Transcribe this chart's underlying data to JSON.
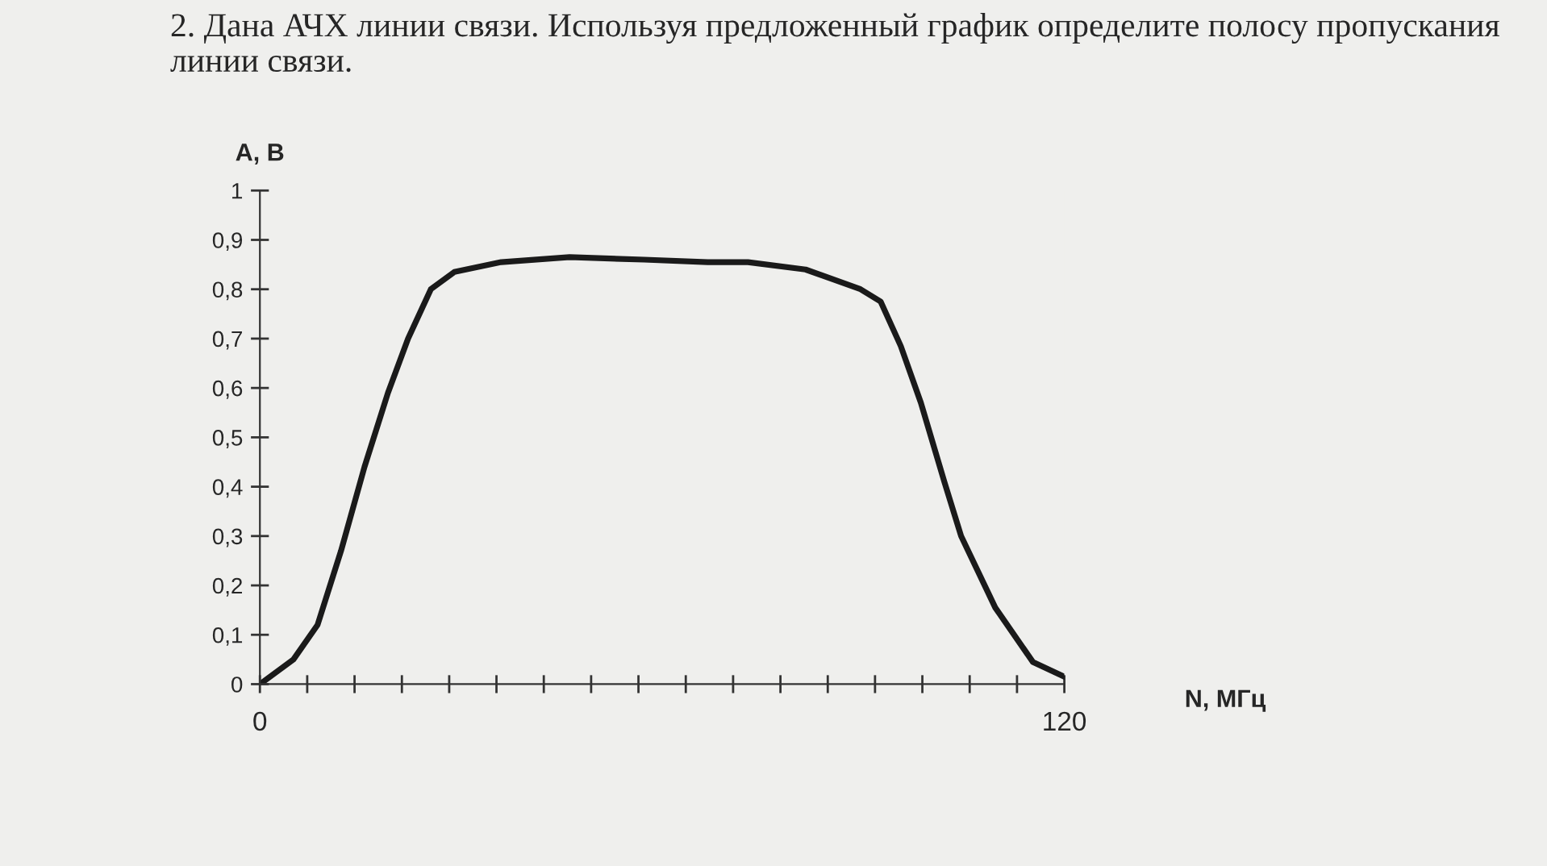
{
  "chart_data": {
    "type": "line",
    "title": "2. Дана АЧХ линии связи. Используя предложенный график определите полосу пропускания линии связи.",
    "xlabel": "N, МГц",
    "ylabel": "А, В",
    "color": "#1a1a1a",
    "line_style": "solid",
    "grid": false,
    "legend": false,
    "x": [
      0,
      5.0,
      8.6,
      12.1,
      15.6,
      19.1,
      22.1,
      25.5,
      29.0,
      36,
      46.2,
      57.3,
      66.8,
      72.8,
      81.4,
      89.6,
      92.6,
      95.6,
      98.6,
      102.1,
      104.6,
      109.7,
      115.3,
      120
    ],
    "values": [
      0,
      0.05,
      0.12,
      0.27,
      0.44,
      0.59,
      0.7,
      0.8,
      0.835,
      0.855,
      0.865,
      0.86,
      0.855,
      0.855,
      0.84,
      0.8,
      0.775,
      0.685,
      0.57,
      0.41,
      0.3,
      0.155,
      0.045,
      0.015
    ],
    "xlim": [
      0,
      120
    ],
    "ylim": [
      0,
      1
    ],
    "xticks": [
      0,
      {
        "value": 7.06,
        "label": null
      },
      {
        "value": 14.12,
        "label": null
      },
      {
        "value": 21.18,
        "label": null
      },
      {
        "value": 28.24,
        "label": null
      },
      {
        "value": 35.29,
        "label": null
      },
      {
        "value": 42.35,
        "label": null
      },
      {
        "value": 49.41,
        "label": null
      },
      {
        "value": 56.47,
        "label": null
      },
      {
        "value": 63.53,
        "label": null
      },
      {
        "value": 70.59,
        "label": null
      },
      {
        "value": 77.65,
        "label": null
      },
      {
        "value": 84.71,
        "label": null
      },
      {
        "value": 91.76,
        "label": null
      },
      {
        "value": 98.82,
        "label": null
      },
      {
        "value": 105.88,
        "label": null
      },
      {
        "value": 112.94,
        "label": null
      },
      120
    ],
    "yticks": [
      0,
      {
        "value": 0.1,
        "label": "0,1"
      },
      {
        "value": 0.2,
        "label": "0,2"
      },
      {
        "value": 0.3,
        "label": "0,3"
      },
      {
        "value": 0.4,
        "label": "0,4"
      },
      {
        "value": 0.5,
        "label": "0,5"
      },
      {
        "value": 0.6,
        "label": "0,6"
      },
      {
        "value": 0.7,
        "label": "0,7"
      },
      {
        "value": 0.8,
        "label": "0,8"
      },
      {
        "value": 0.9,
        "label": "0,9"
      },
      1
    ]
  }
}
